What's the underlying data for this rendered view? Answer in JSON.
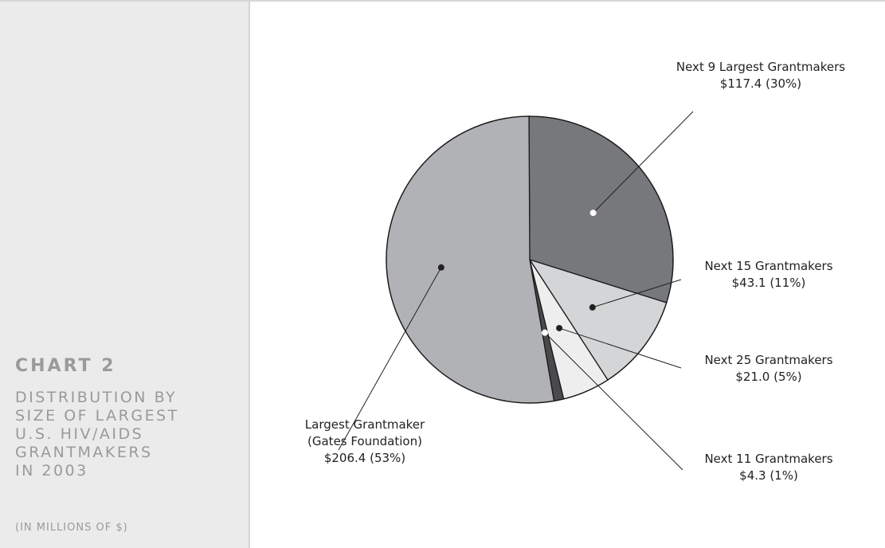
{
  "sidebar": {
    "chart_label": "CHART 2",
    "title": "DISTRIBUTION BY\nSIZE OF LARGEST\nU.S. HIV/AIDS\nGRANTMAKERS\nIN 2003",
    "unit": "(IN MILLIONS OF $)"
  },
  "chart_data": {
    "type": "pie",
    "title": "DISTRIBUTION BY SIZE OF LARGEST U.S. HIV/AIDS GRANTMAKERS IN 2003",
    "unit": "(IN MILLIONS OF $)",
    "slices": [
      {
        "name": "Next 9 Largest Grantmakers",
        "value": 117.4,
        "percent": 30,
        "value_label": "$117.4 (30%)",
        "color": "#77787b",
        "label_lines": [
          "Next 9 Largest Grantmakers",
          "$117.4 (30%)"
        ]
      },
      {
        "name": "Next 15 Grantmakers",
        "value": 43.1,
        "percent": 11,
        "value_label": "$43.1 (11%)",
        "color": "#d4d5d6",
        "label_lines": [
          "Next 15 Grantmakers",
          "$43.1 (11%)"
        ]
      },
      {
        "name": "Next 25 Grantmakers",
        "value": 21.0,
        "percent": 5,
        "value_label": "$21.0 (5%)",
        "color": "#eeeeee",
        "label_lines": [
          "Next 25 Grantmakers",
          "$21.0 (5%)"
        ]
      },
      {
        "name": "Next 11 Grantmakers",
        "value": 4.3,
        "percent": 1,
        "value_label": "$4.3 (1%)",
        "color": "#4a4a4c",
        "label_lines": [
          "Next 11 Grantmakers",
          "$4.3 (1%)"
        ]
      },
      {
        "name": "Largest Grantmaker (Gates Foundation)",
        "value": 206.4,
        "percent": 53,
        "value_label": "$206.4 (53%)",
        "color": "#b1b2b5",
        "label_lines": [
          "Largest Grantmaker",
          "(Gates Foundation)",
          "$206.4 (53%)"
        ]
      }
    ]
  }
}
